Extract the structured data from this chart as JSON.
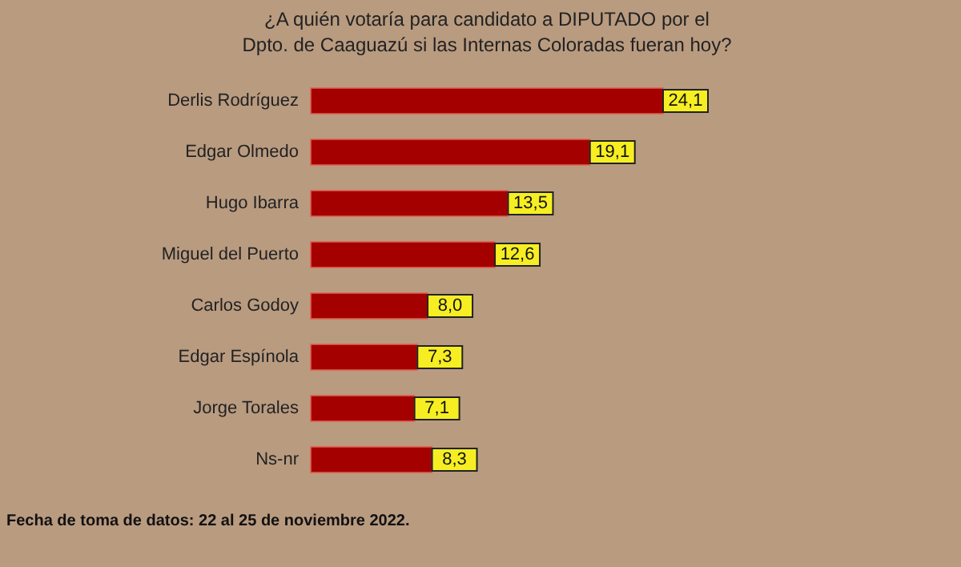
{
  "chart_data": {
    "type": "bar",
    "orientation": "horizontal",
    "title": "¿A quién votaría para candidato a DIPUTADO por el\nDpto. de Caaguazú si las Internas Coloradas fueran hoy?",
    "categories": [
      "Derlis Rodríguez",
      "Edgar Olmedo",
      "Hugo Ibarra",
      "Miguel del Puerto",
      "Carlos Godoy",
      "Edgar Espínola",
      "Jorge Torales",
      "Ns-nr"
    ],
    "values": [
      24.1,
      19.1,
      13.5,
      12.6,
      8.0,
      7.3,
      7.1,
      8.3
    ],
    "value_labels": [
      "24,1",
      "19,1",
      "13,5",
      "12,6",
      "8,0",
      "7,3",
      "7,1",
      "8,3"
    ],
    "color": "#a50000",
    "annotations": [
      "Fecha de toma de datos: 22 al 25 de noviembre 2022."
    ]
  }
}
